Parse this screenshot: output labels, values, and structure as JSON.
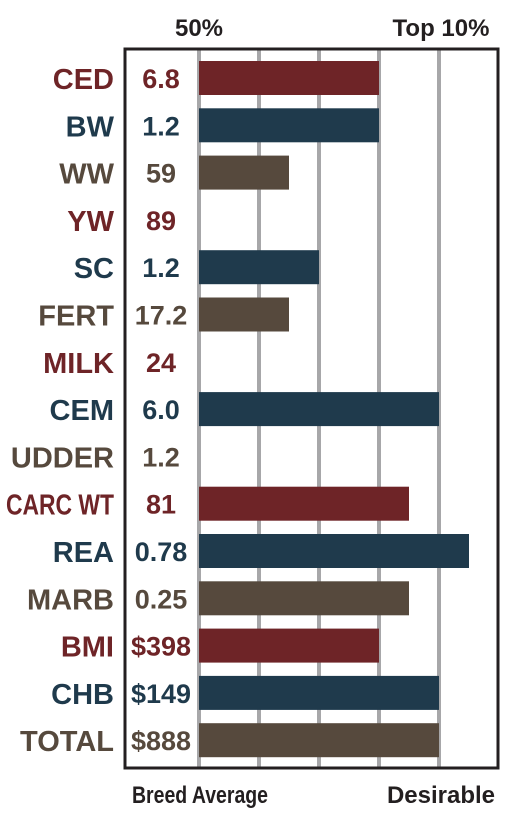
{
  "chart_data": {
    "type": "bar",
    "orientation": "horizontal",
    "header_labels": {
      "left": "50%",
      "right": "Top 10%"
    },
    "footer_labels": {
      "left": "Breed Average",
      "right": "Desirable"
    },
    "grid": true,
    "xlim": [
      0,
      9
    ],
    "colors": {
      "red": "#6e2427",
      "blue": "#1f3a4c",
      "brown": "#56493d",
      "grid": "#a7a7a9",
      "frame": "#231f20"
    },
    "rows": [
      {
        "trait": "CED",
        "value_label": "6.8",
        "bar": 6,
        "color": "red"
      },
      {
        "trait": "BW",
        "value_label": "1.2",
        "bar": 6,
        "color": "blue"
      },
      {
        "trait": "WW",
        "value_label": "59",
        "bar": 3,
        "color": "brown"
      },
      {
        "trait": "YW",
        "value_label": "89",
        "bar": 0,
        "color": "red"
      },
      {
        "trait": "SC",
        "value_label": "1.2",
        "bar": 4,
        "color": "blue"
      },
      {
        "trait": "FERT",
        "value_label": "17.2",
        "bar": 3,
        "color": "brown"
      },
      {
        "trait": "MILK",
        "value_label": "24",
        "bar": 0,
        "color": "red"
      },
      {
        "trait": "CEM",
        "value_label": "6.0",
        "bar": 8,
        "color": "blue"
      },
      {
        "trait": "UDDER",
        "value_label": "1.2",
        "bar": 0,
        "color": "brown"
      },
      {
        "trait": "CARC WT",
        "value_label": "81",
        "bar": 7,
        "color": "red"
      },
      {
        "trait": "REA",
        "value_label": "0.78",
        "bar": 9,
        "color": "blue"
      },
      {
        "trait": "MARB",
        "value_label": "0.25",
        "bar": 7,
        "color": "brown"
      },
      {
        "trait": "BMI",
        "value_label": "$398",
        "bar": 6,
        "color": "red"
      },
      {
        "trait": "CHB",
        "value_label": "$149",
        "bar": 8,
        "color": "blue"
      },
      {
        "trait": "TOTAL",
        "value_label": "$888",
        "bar": 8,
        "color": "brown"
      }
    ]
  }
}
